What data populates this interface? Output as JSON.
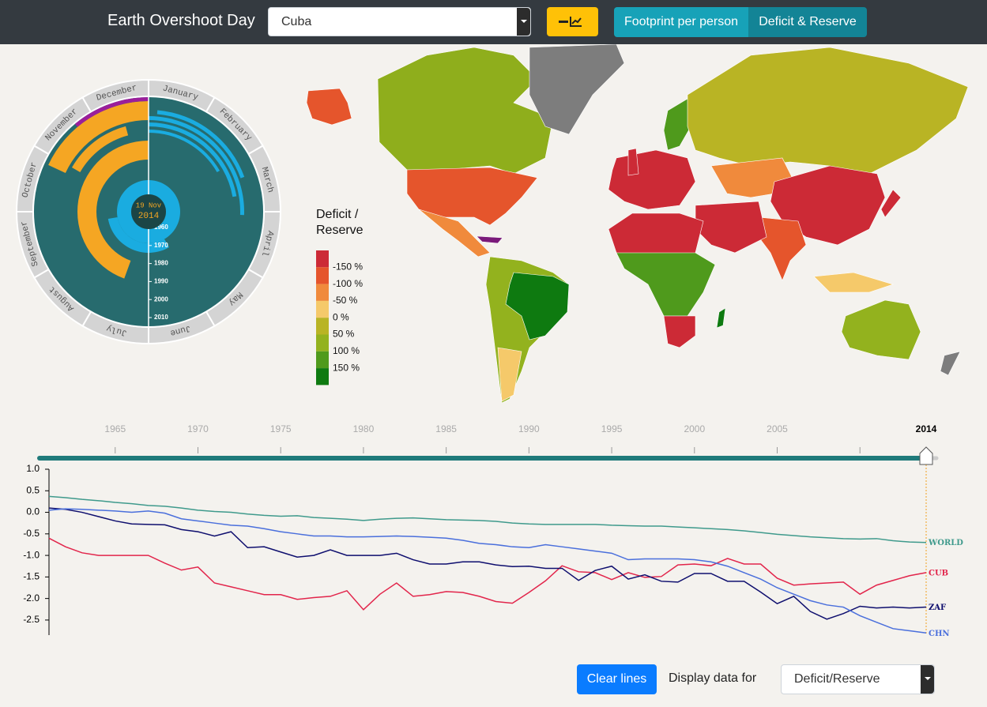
{
  "header": {
    "title": "Earth Overshoot Day",
    "country": "Cuba",
    "tabs": [
      "Footprint per person",
      "Deficit & Reserve"
    ]
  },
  "calendar": {
    "months": [
      "January",
      "February",
      "March",
      "April",
      "May",
      "June",
      "July",
      "August",
      "September",
      "October",
      "November",
      "December"
    ],
    "day": "19 Nov",
    "year": "2014",
    "year_ticks": [
      1960,
      1970,
      1980,
      1990,
      2000,
      2010
    ]
  },
  "map_legend": {
    "title": [
      "Deficit /",
      "Reserve"
    ],
    "colors": [
      "#cc2a36",
      "#e5552c",
      "#f08a3c",
      "#f5c96a",
      "#b9b424",
      "#93b21e",
      "#4f9a1c",
      "#0e7a10"
    ],
    "labels": [
      "-150 %",
      "-100 %",
      "-50 %",
      "0 %",
      "50 %",
      "100 %",
      "150 %"
    ]
  },
  "timeline": {
    "ticks": [
      1965,
      1970,
      1975,
      1980,
      1985,
      1990,
      1995,
      2000,
      2005,
      2010
    ],
    "selected": 2014
  },
  "chart_data": {
    "type": "line",
    "x": [
      1961,
      1962,
      1963,
      1964,
      1965,
      1966,
      1967,
      1968,
      1969,
      1970,
      1971,
      1972,
      1973,
      1974,
      1975,
      1976,
      1977,
      1978,
      1979,
      1980,
      1981,
      1982,
      1983,
      1984,
      1985,
      1986,
      1987,
      1988,
      1989,
      1990,
      1991,
      1992,
      1993,
      1994,
      1995,
      1996,
      1997,
      1998,
      1999,
      2000,
      2001,
      2002,
      2003,
      2004,
      2005,
      2006,
      2007,
      2008,
      2009,
      2010,
      2011,
      2012,
      2013,
      2014
    ],
    "xlim": [
      1961,
      2014
    ],
    "ylim": [
      -2.85,
      1.0
    ],
    "yticks": [
      {
        "value": 1.0,
        "label": "1.0"
      },
      0.5,
      {
        "value": 0,
        "label": "0.0"
      },
      -0.5,
      {
        "value": -1.0,
        "label": "-1.0"
      },
      -1.5,
      {
        "value": -2.0,
        "label": "-2.0"
      },
      -2.5
    ],
    "series": [
      {
        "name": "WORLD",
        "color": "#3f9a8c",
        "values": [
          0.37,
          0.34,
          0.3,
          0.27,
          0.23,
          0.2,
          0.16,
          0.14,
          0.1,
          0.05,
          0.02,
          0.0,
          -0.04,
          -0.07,
          -0.09,
          -0.08,
          -0.12,
          -0.14,
          -0.16,
          -0.19,
          -0.16,
          -0.14,
          -0.13,
          -0.15,
          -0.17,
          -0.18,
          -0.19,
          -0.21,
          -0.25,
          -0.27,
          -0.28,
          -0.28,
          -0.28,
          -0.28,
          -0.3,
          -0.31,
          -0.32,
          -0.32,
          -0.34,
          -0.36,
          -0.38,
          -0.4,
          -0.43,
          -0.47,
          -0.51,
          -0.54,
          -0.57,
          -0.59,
          -0.61,
          -0.62,
          -0.61,
          -0.66,
          -0.69,
          -0.7
        ]
      },
      {
        "name": "CUB",
        "color": "#e2254b",
        "values": [
          -0.6,
          -0.8,
          -0.94,
          -1.0,
          -1.0,
          -1.0,
          -1.0,
          -1.18,
          -1.34,
          -1.27,
          -1.64,
          -1.73,
          -1.82,
          -1.91,
          -1.91,
          -2.02,
          -1.98,
          -1.95,
          -1.82,
          -2.26,
          -1.9,
          -1.64,
          -1.95,
          -1.91,
          -1.84,
          -1.86,
          -1.95,
          -2.07,
          -2.11,
          -1.86,
          -1.59,
          -1.24,
          -1.38,
          -1.4,
          -1.56,
          -1.4,
          -1.51,
          -1.49,
          -1.22,
          -1.2,
          -1.24,
          -1.07,
          -1.2,
          -1.2,
          -1.53,
          -1.69,
          -1.66,
          -1.64,
          -1.62,
          -1.9,
          -1.69,
          -1.58,
          -1.47,
          -1.4
        ]
      },
      {
        "name": "ZAF",
        "color": "#0e0e6e",
        "values": [
          0.1,
          0.07,
          0.0,
          -0.1,
          -0.2,
          -0.27,
          -0.28,
          -0.29,
          -0.4,
          -0.45,
          -0.55,
          -0.45,
          -0.82,
          -0.8,
          -0.92,
          -1.04,
          -1.0,
          -0.87,
          -1.0,
          -1.0,
          -1.0,
          -0.95,
          -1.1,
          -1.2,
          -1.2,
          -1.15,
          -1.15,
          -1.22,
          -1.26,
          -1.25,
          -1.3,
          -1.3,
          -1.58,
          -1.35,
          -1.25,
          -1.55,
          -1.45,
          -1.6,
          -1.62,
          -1.42,
          -1.42,
          -1.6,
          -1.6,
          -1.85,
          -2.12,
          -1.95,
          -2.3,
          -2.48,
          -2.35,
          -2.18,
          -2.22,
          -2.2,
          -2.22,
          -2.2
        ]
      },
      {
        "name": "CHN",
        "color": "#4a6fdc",
        "values": [
          0.05,
          0.08,
          0.07,
          0.05,
          0.03,
          0.0,
          0.03,
          -0.02,
          -0.15,
          -0.2,
          -0.25,
          -0.3,
          -0.32,
          -0.38,
          -0.45,
          -0.5,
          -0.55,
          -0.55,
          -0.57,
          -0.57,
          -0.56,
          -0.55,
          -0.56,
          -0.58,
          -0.6,
          -0.65,
          -0.72,
          -0.75,
          -0.8,
          -0.82,
          -0.75,
          -0.8,
          -0.85,
          -0.9,
          -0.95,
          -1.1,
          -1.08,
          -1.08,
          -1.08,
          -1.1,
          -1.15,
          -1.25,
          -1.4,
          -1.55,
          -1.75,
          -1.9,
          -2.05,
          -2.15,
          -2.2,
          -2.4,
          -2.55,
          -2.7,
          -2.75,
          -2.8
        ]
      }
    ]
  },
  "controls": {
    "button": "Clear lines",
    "label": "Display data for",
    "select": "Deficit/Reserve"
  }
}
